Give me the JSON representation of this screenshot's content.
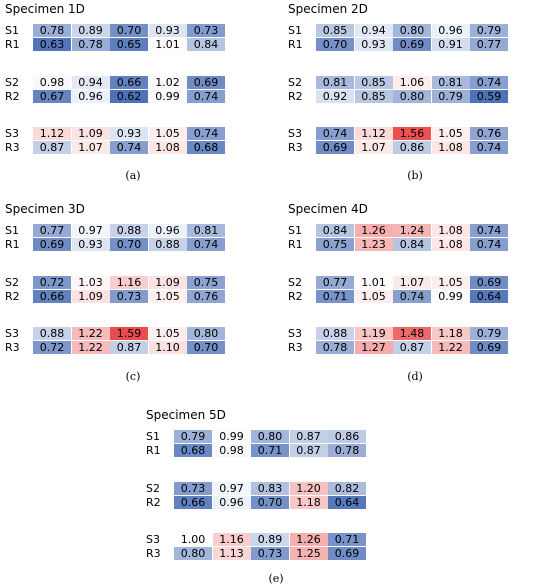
{
  "chart_data": {
    "type": "heatmap",
    "color_scale": {
      "low": "#4e72b8",
      "mid": "#ffffff",
      "high": "#ea4b4b",
      "center": 1.0
    },
    "panels": [
      {
        "title": "Specimen 1D",
        "caption": "(a)",
        "groups": [
          {
            "rows": [
              {
                "label": "S1",
                "values": [
                  0.78,
                  0.89,
                  0.7,
                  0.93,
                  0.73
                ]
              },
              {
                "label": "R1",
                "values": [
                  0.63,
                  0.78,
                  0.65,
                  1.01,
                  0.84
                ]
              }
            ]
          },
          {
            "rows": [
              {
                "label": "S2",
                "values": [
                  0.98,
                  0.94,
                  0.66,
                  1.02,
                  0.69
                ]
              },
              {
                "label": "R2",
                "values": [
                  0.67,
                  0.96,
                  0.62,
                  0.99,
                  0.74
                ]
              }
            ]
          },
          {
            "rows": [
              {
                "label": "S3",
                "values": [
                  1.12,
                  1.09,
                  0.93,
                  1.05,
                  0.74
                ]
              },
              {
                "label": "R3",
                "values": [
                  0.87,
                  1.07,
                  0.74,
                  1.08,
                  0.68
                ]
              }
            ]
          }
        ]
      },
      {
        "title": "Specimen 2D",
        "caption": "(b)",
        "groups": [
          {
            "rows": [
              {
                "label": "S1",
                "values": [
                  0.85,
                  0.94,
                  0.8,
                  0.96,
                  0.79
                ]
              },
              {
                "label": "R1",
                "values": [
                  0.7,
                  0.93,
                  0.69,
                  0.91,
                  0.77
                ]
              }
            ]
          },
          {
            "rows": [
              {
                "label": "S2",
                "values": [
                  0.81,
                  0.85,
                  1.06,
                  0.81,
                  0.74
                ]
              },
              {
                "label": "R2",
                "values": [
                  0.92,
                  0.85,
                  0.8,
                  0.79,
                  0.59
                ]
              }
            ]
          },
          {
            "rows": [
              {
                "label": "S3",
                "values": [
                  0.74,
                  1.12,
                  1.56,
                  1.05,
                  0.76
                ]
              },
              {
                "label": "R3",
                "values": [
                  0.69,
                  1.07,
                  0.86,
                  1.08,
                  0.74
                ]
              }
            ]
          }
        ]
      },
      {
        "title": "Specimen 3D",
        "caption": "(c)",
        "groups": [
          {
            "rows": [
              {
                "label": "S1",
                "values": [
                  0.77,
                  0.97,
                  0.88,
                  0.96,
                  0.81
                ]
              },
              {
                "label": "R1",
                "values": [
                  0.69,
                  0.93,
                  0.7,
                  0.88,
                  0.74
                ]
              }
            ]
          },
          {
            "rows": [
              {
                "label": "S2",
                "values": [
                  0.72,
                  1.03,
                  1.16,
                  1.09,
                  0.75
                ]
              },
              {
                "label": "R2",
                "values": [
                  0.66,
                  1.09,
                  0.73,
                  1.05,
                  0.76
                ]
              }
            ]
          },
          {
            "rows": [
              {
                "label": "S3",
                "values": [
                  0.88,
                  1.22,
                  1.59,
                  1.05,
                  0.8
                ]
              },
              {
                "label": "R3",
                "values": [
                  0.72,
                  1.22,
                  0.87,
                  1.1,
                  0.7
                ]
              }
            ]
          }
        ]
      },
      {
        "title": "Specimen 4D",
        "caption": "(d)",
        "groups": [
          {
            "rows": [
              {
                "label": "S1",
                "values": [
                  0.84,
                  1.26,
                  1.24,
                  1.08,
                  0.74
                ]
              },
              {
                "label": "R1",
                "values": [
                  0.75,
                  1.23,
                  0.84,
                  1.08,
                  0.74
                ]
              }
            ]
          },
          {
            "rows": [
              {
                "label": "S2",
                "values": [
                  0.77,
                  1.01,
                  1.07,
                  1.05,
                  0.69
                ]
              },
              {
                "label": "R2",
                "values": [
                  0.71,
                  1.05,
                  0.74,
                  0.99,
                  0.64
                ]
              }
            ]
          },
          {
            "rows": [
              {
                "label": "S3",
                "values": [
                  0.88,
                  1.19,
                  1.48,
                  1.18,
                  0.79
                ]
              },
              {
                "label": "R3",
                "values": [
                  0.78,
                  1.27,
                  0.87,
                  1.22,
                  0.69
                ]
              }
            ]
          }
        ]
      },
      {
        "title": "Specimen 5D",
        "caption": "(e)",
        "groups": [
          {
            "rows": [
              {
                "label": "S1",
                "values": [
                  0.79,
                  0.99,
                  0.8,
                  0.87,
                  0.86
                ]
              },
              {
                "label": "R1",
                "values": [
                  0.68,
                  0.98,
                  0.71,
                  0.87,
                  0.78
                ]
              }
            ]
          },
          {
            "rows": [
              {
                "label": "S2",
                "values": [
                  0.73,
                  0.97,
                  0.83,
                  1.2,
                  0.82
                ]
              },
              {
                "label": "R2",
                "values": [
                  0.66,
                  0.96,
                  0.7,
                  1.18,
                  0.64
                ]
              }
            ]
          },
          {
            "rows": [
              {
                "label": "S3",
                "values": [
                  1.0,
                  1.16,
                  0.89,
                  1.26,
                  0.71
                ]
              },
              {
                "label": "R3",
                "values": [
                  0.8,
                  1.13,
                  0.73,
                  1.25,
                  0.69
                ]
              }
            ]
          }
        ]
      }
    ]
  }
}
